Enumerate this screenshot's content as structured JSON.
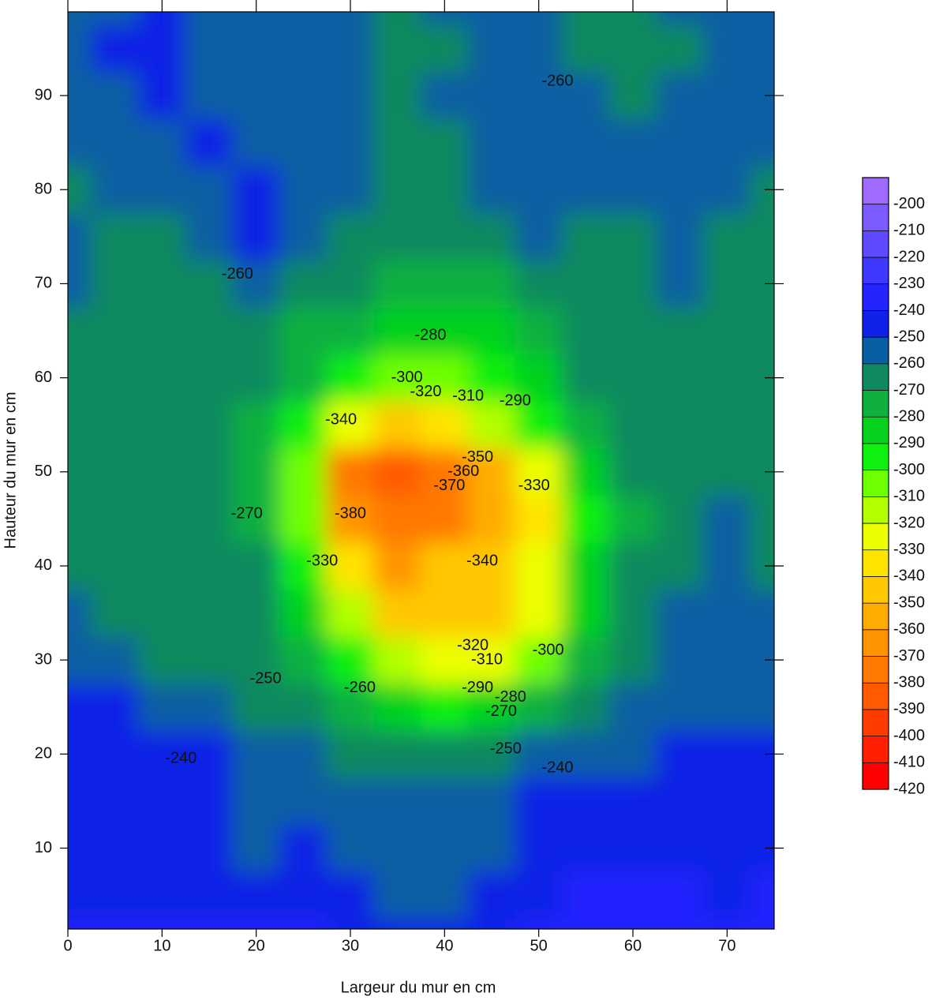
{
  "chart_data": {
    "type": "contour",
    "xlabel": "Largeur du mur en cm",
    "ylabel": "Hauteur du mur en cm",
    "xlim": [
      0,
      75
    ],
    "ylim": [
      1.4,
      98.9
    ],
    "xticks": [
      0,
      10,
      20,
      30,
      40,
      50,
      60,
      70
    ],
    "yticks": [
      10,
      20,
      30,
      40,
      50,
      60,
      70,
      80,
      90
    ],
    "x": [
      0,
      5,
      10,
      15,
      20,
      25,
      30,
      35,
      40,
      45,
      50,
      55,
      60,
      65,
      70,
      75
    ],
    "y": [
      0,
      5,
      10,
      15,
      20,
      25,
      30,
      35,
      40,
      45,
      50,
      55,
      60,
      65,
      70,
      75,
      80,
      85,
      90,
      95,
      100
    ],
    "z": [
      [
        -232,
        -236,
        -234,
        -238,
        -236,
        -238,
        -244,
        -246,
        -244,
        -240,
        -236,
        -232,
        -230,
        -232,
        -234,
        -230
      ],
      [
        -240,
        -242,
        -246,
        -244,
        -240,
        -242,
        -246,
        -250,
        -252,
        -246,
        -240,
        -238,
        -236,
        -238,
        -240,
        -238
      ],
      [
        -244,
        -244,
        -244,
        -246,
        -250,
        -248,
        -250,
        -254,
        -255,
        -252,
        -246,
        -244,
        -244,
        -244,
        -244,
        -242
      ],
      [
        -243,
        -244,
        -244,
        -248,
        -250,
        -252,
        -254,
        -252,
        -252,
        -250,
        -248,
        -245,
        -245,
        -245,
        -245,
        -246
      ],
      [
        -244,
        -245,
        -242,
        -244,
        -252,
        -258,
        -262,
        -264,
        -266,
        -262,
        -258,
        -252,
        -250,
        -248,
        -248,
        -248
      ],
      [
        -245,
        -248,
        -250,
        -255,
        -260,
        -264,
        -270,
        -285,
        -290,
        -285,
        -272,
        -262,
        -255,
        -252,
        -252,
        -250
      ],
      [
        -252,
        -258,
        -260,
        -262,
        -264,
        -270,
        -290,
        -315,
        -325,
        -320,
        -300,
        -275,
        -262,
        -256,
        -255,
        -255
      ],
      [
        -258,
        -260,
        -262,
        -262,
        -265,
        -280,
        -315,
        -340,
        -340,
        -340,
        -320,
        -282,
        -265,
        -258,
        -256,
        -258
      ],
      [
        -262,
        -262,
        -260,
        -262,
        -268,
        -290,
        -330,
        -360,
        -345,
        -340,
        -325,
        -285,
        -268,
        -262,
        -258,
        -260
      ],
      [
        -262,
        -262,
        -262,
        -262,
        -272,
        -300,
        -360,
        -375,
        -370,
        -350,
        -330,
        -290,
        -270,
        -262,
        -258,
        -262
      ],
      [
        -260,
        -262,
        -262,
        -265,
        -275,
        -305,
        -370,
        -385,
        -375,
        -350,
        -320,
        -285,
        -268,
        -262,
        -262,
        -264
      ],
      [
        -262,
        -262,
        -266,
        -262,
        -272,
        -290,
        -320,
        -340,
        -335,
        -315,
        -295,
        -275,
        -265,
        -262,
        -262,
        -262
      ],
      [
        -264,
        -262,
        -262,
        -264,
        -268,
        -275,
        -290,
        -300,
        -302,
        -295,
        -282,
        -268,
        -264,
        -262,
        -266,
        -262
      ],
      [
        -262,
        -262,
        -262,
        -262,
        -264,
        -270,
        -276,
        -282,
        -282,
        -280,
        -272,
        -262,
        -262,
        -262,
        -264,
        -262
      ],
      [
        -258,
        -260,
        -262,
        -260,
        -258,
        -262,
        -268,
        -272,
        -272,
        -275,
        -262,
        -260,
        -262,
        -258,
        -262,
        -262
      ],
      [
        -258,
        -262,
        -260,
        -255,
        -248,
        -256,
        -260,
        -264,
        -264,
        -262,
        -258,
        -262,
        -262,
        -258,
        -260,
        -262
      ],
      [
        -262,
        -258,
        -255,
        -250,
        -248,
        -255,
        -258,
        -264,
        -260,
        -256,
        -255,
        -255,
        -255,
        -256,
        -258,
        -260
      ],
      [
        -256,
        -255,
        -250,
        -249,
        -250,
        -256,
        -256,
        -262,
        -262,
        -258,
        -255,
        -255,
        -255,
        -255,
        -256,
        -256
      ],
      [
        -258,
        -252,
        -248,
        -250,
        -256,
        -257,
        -256,
        -262,
        -258,
        -255,
        -255,
        -258,
        -264,
        -258,
        -256,
        -258
      ],
      [
        -255,
        -248,
        -246,
        -250,
        -255,
        -256,
        -258,
        -262,
        -262,
        -256,
        -255,
        -262,
        -266,
        -260,
        -256,
        -258
      ],
      [
        -255,
        -250,
        -248,
        -252,
        -255,
        -255,
        -258,
        -262,
        -258,
        -255,
        -258,
        -262,
        -262,
        -258,
        -255,
        -258
      ]
    ],
    "levels": [
      -200,
      -210,
      -220,
      -230,
      -240,
      -250,
      -260,
      -270,
      -280,
      -290,
      -300,
      -310,
      -320,
      -330,
      -340,
      -350,
      -360,
      -370,
      -380,
      -390,
      -400,
      -410,
      -420
    ],
    "colors": [
      "#9f6bff",
      "#7d5cff",
      "#5e4bff",
      "#4038ff",
      "#2424ff",
      "#0f22e6",
      "#0a5ea3",
      "#0f8a5e",
      "#10b040",
      "#06d21e",
      "#10f010",
      "#70ff00",
      "#b4ff00",
      "#ecff00",
      "#ffe400",
      "#ffc800",
      "#ffac00",
      "#ff9400",
      "#ff7800",
      "#ff5a00",
      "#ff3c00",
      "#ff2000",
      "#ff0000"
    ],
    "contour_labels": [
      {
        "value": -260,
        "x": 52,
        "y": 91.5
      },
      {
        "value": -260,
        "x": 18,
        "y": 71
      },
      {
        "value": -280,
        "x": 38.5,
        "y": 64.5
      },
      {
        "value": -300,
        "x": 36,
        "y": 60
      },
      {
        "value": -320,
        "x": 38,
        "y": 58.5
      },
      {
        "value": -310,
        "x": 42.5,
        "y": 58
      },
      {
        "value": -290,
        "x": 47.5,
        "y": 57.5
      },
      {
        "value": -340,
        "x": 29,
        "y": 55.5
      },
      {
        "value": -350,
        "x": 43.5,
        "y": 51.5
      },
      {
        "value": -360,
        "x": 42,
        "y": 50
      },
      {
        "value": -370,
        "x": 40.5,
        "y": 48.5
      },
      {
        "value": -380,
        "x": 30,
        "y": 45.5
      },
      {
        "value": -330,
        "x": 49.5,
        "y": 48.5
      },
      {
        "value": -270,
        "x": 19,
        "y": 45.5
      },
      {
        "value": -330,
        "x": 27,
        "y": 40.5
      },
      {
        "value": -340,
        "x": 44,
        "y": 40.5
      },
      {
        "value": -300,
        "x": 51,
        "y": 31
      },
      {
        "value": -320,
        "x": 43,
        "y": 31.5
      },
      {
        "value": -310,
        "x": 44.5,
        "y": 30
      },
      {
        "value": -290,
        "x": 43.5,
        "y": 27
      },
      {
        "value": -280,
        "x": 47,
        "y": 26
      },
      {
        "value": -270,
        "x": 46,
        "y": 24.5
      },
      {
        "value": -250,
        "x": 21,
        "y": 28
      },
      {
        "value": -260,
        "x": 31,
        "y": 27
      },
      {
        "value": -250,
        "x": 46.5,
        "y": 20.5
      },
      {
        "value": -240,
        "x": 12,
        "y": 19.5
      },
      {
        "value": -240,
        "x": 52,
        "y": 18.5
      }
    ]
  }
}
